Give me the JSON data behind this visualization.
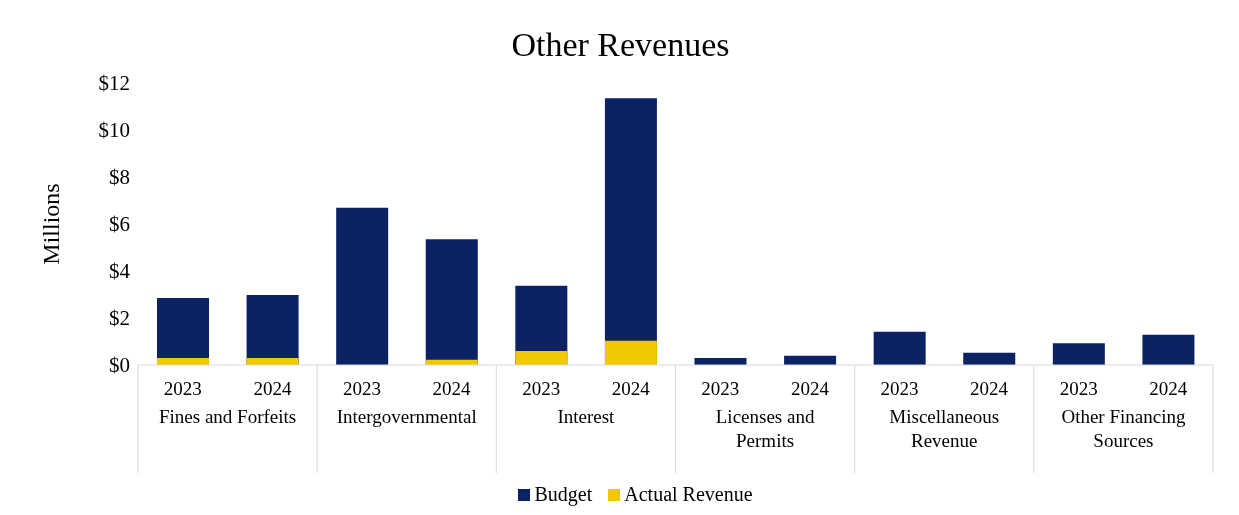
{
  "chart_data": {
    "type": "bar",
    "title": "Other Revenues",
    "ylabel": "Millions",
    "categories": [
      "2023",
      "2024",
      "2023",
      "2024",
      "2023",
      "2024",
      "2023",
      "2024",
      "2023",
      "2024",
      "2023",
      "2024"
    ],
    "annotations": [
      "Fines and Forfeits",
      "Intergovernmental",
      "Interest",
      "Licenses and Permits",
      "Miscellaneous Revenue",
      "Other Financing Sources"
    ],
    "series": [
      {
        "name": "Budget",
        "color": "#0b2264",
        "values": [
          2.85,
          2.98,
          6.69,
          5.35,
          3.37,
          11.35,
          0.3,
          0.39,
          1.42,
          0.52,
          0.93,
          1.29
        ]
      },
      {
        "name": "Actual Revenue",
        "color": "#f2c900",
        "values": [
          0.3,
          0.3,
          0,
          0.22,
          0.6,
          1.03,
          0,
          0,
          0,
          0,
          0,
          0
        ]
      }
    ],
    "ylim": [
      0,
      12
    ],
    "yticks": [
      {
        "value": 0,
        "label": "$0"
      },
      {
        "value": 2,
        "label": "$2"
      },
      {
        "value": 4,
        "label": "$4"
      },
      {
        "value": 6,
        "label": "$6"
      },
      {
        "value": 8,
        "label": "$8"
      },
      {
        "value": 10,
        "label": "$10"
      },
      {
        "value": 12,
        "label": "$12"
      }
    ],
    "grid": false,
    "legend": "bottom"
  }
}
